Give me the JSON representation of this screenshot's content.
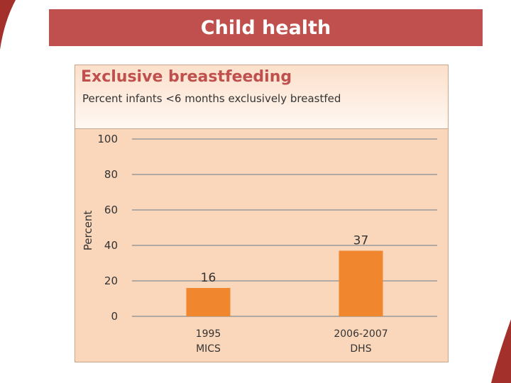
{
  "slide": {
    "title": "Child health"
  },
  "colors": {
    "title_bar": "#c0504d",
    "panel_background": "#fad7bb",
    "bar": "#f0862e",
    "gridline": "#9a9a9a",
    "chart_title": "#c0504d"
  },
  "chart_data": {
    "type": "bar",
    "title": "Exclusive breastfeeding",
    "subtitle": "Percent infants <6 months exclusively breastfed",
    "ylabel": "Percent",
    "xlabel": "",
    "ylim": [
      0,
      100
    ],
    "yticks": [
      0,
      20,
      40,
      60,
      80,
      100
    ],
    "grid": true,
    "categories": [
      {
        "line1": "1995",
        "line2": "MICS"
      },
      {
        "line1": "2006-2007",
        "line2": "DHS"
      }
    ],
    "values": [
      16,
      37
    ]
  }
}
